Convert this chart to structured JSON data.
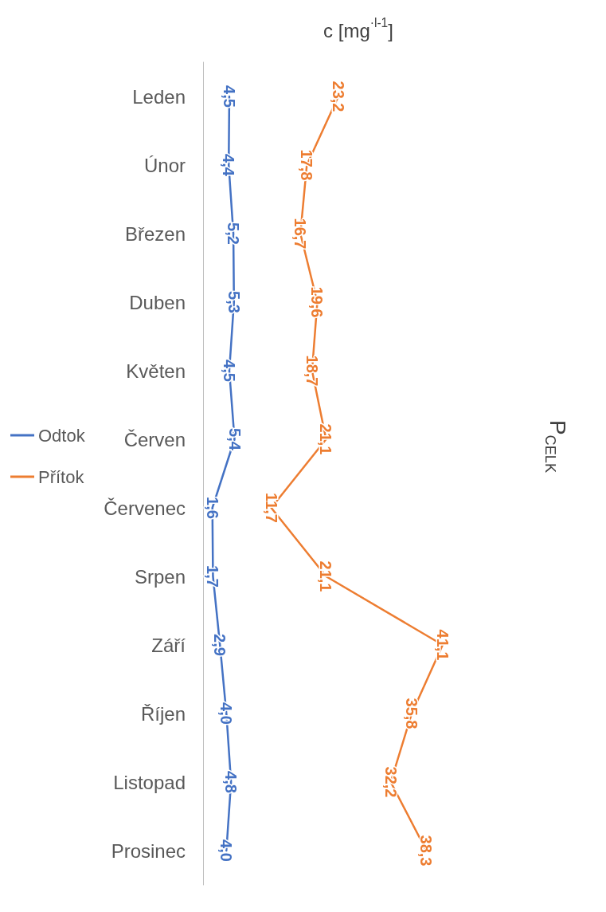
{
  "chart_data": {
    "type": "line",
    "orientation": "horizontal",
    "title": "P$_{CELK}$",
    "ylabel": "c [mg$^{·l-1}$]",
    "categories": [
      "Leden",
      "Únor",
      "Březen",
      "Duben",
      "Květen",
      "Červen",
      "Červenec",
      "Srpen",
      "Září",
      "Říjen",
      "Listopad",
      "Prosinec"
    ],
    "series": [
      {
        "name": "Odtok",
        "color": "#4472c4",
        "values": [
          4.5,
          4.4,
          5.2,
          5.3,
          4.5,
          5.4,
          1.6,
          1.7,
          2.9,
          4.0,
          4.8,
          4.0
        ],
        "value_labels": [
          "4,5",
          "4,4",
          "5,2",
          "5,3",
          "4,5",
          "5,4",
          "1,6",
          "1,7",
          "2,9",
          "4,0",
          "4,8",
          "4,0"
        ]
      },
      {
        "name": "Přítok",
        "color": "#ed7d31",
        "values": [
          23.2,
          17.8,
          16.7,
          19.6,
          18.7,
          21.1,
          11.7,
          21.1,
          41.1,
          35.8,
          32.2,
          38.3
        ],
        "value_labels": [
          "23,2",
          "17,8",
          "16,7",
          "19,6",
          "18,7",
          "21,1",
          "11,7",
          "21,1",
          "41,1",
          "35,8",
          "32,2",
          "38,3"
        ]
      }
    ],
    "marker": "none",
    "line_style": "solid",
    "legend": "left"
  }
}
